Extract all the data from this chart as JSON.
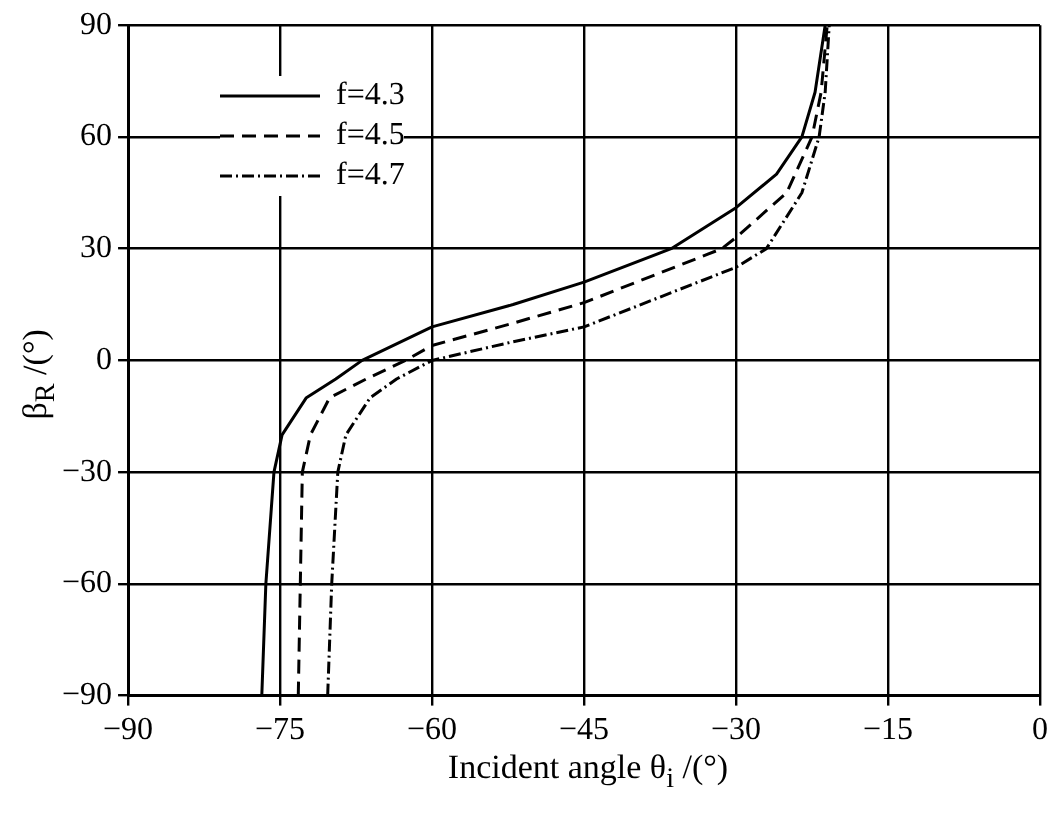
{
  "chart_data": {
    "type": "line",
    "xlabel": "Incident angle θ$_{i}$ /(°)",
    "ylabel": "β$_{R}$ /(°)",
    "xlim": [
      -90,
      0
    ],
    "xticks": [
      -90,
      -75,
      -60,
      -45,
      -30,
      -15,
      0
    ],
    "ylim": [
      -90,
      90
    ],
    "yticks": [
      -90,
      -60,
      -30,
      0,
      30,
      60,
      90
    ],
    "grid": true,
    "legend": "top left",
    "marker": "none",
    "series": [
      {
        "name": "f=4.3",
        "color": "#000000",
        "line_style": "solid",
        "x": [
          -76.8,
          -76.4,
          -75.6,
          -74.8,
          -72.4,
          -69.5,
          -66.9,
          -60,
          -52,
          -45,
          -36.4,
          -30,
          -26,
          -23.5,
          -22.2,
          -21.2
        ],
        "values": [
          -90,
          -60,
          -30,
          -20,
          -10,
          -5,
          0,
          9,
          15,
          21,
          30,
          41,
          50,
          60,
          72,
          90
        ]
      },
      {
        "name": "f=4.5",
        "color": "#000000",
        "line_style": "dashed",
        "x": [
          -73.2,
          -73,
          -72.8,
          -72,
          -70.1,
          -66.5,
          -62.6,
          -60,
          -52,
          -45,
          -31.4,
          -30,
          -25,
          -22.5,
          -21.6,
          -21
        ],
        "values": [
          -90,
          -60,
          -30,
          -20,
          -10,
          -5,
          0,
          4,
          10,
          15.5,
          30,
          33,
          45,
          60,
          72,
          90
        ]
      },
      {
        "name": "f=4.7",
        "color": "#000000",
        "line_style": "dotted",
        "x": [
          -70.3,
          -69.9,
          -69.3,
          -68.5,
          -66.1,
          -63.5,
          -60,
          -52,
          -45,
          -30,
          -27,
          -23.5,
          -21.8,
          -21.2,
          -20.8
        ],
        "values": [
          -90,
          -60,
          -30,
          -20,
          -10,
          -5,
          0,
          5,
          9,
          25,
          30,
          45,
          60,
          72,
          90
        ]
      }
    ]
  }
}
